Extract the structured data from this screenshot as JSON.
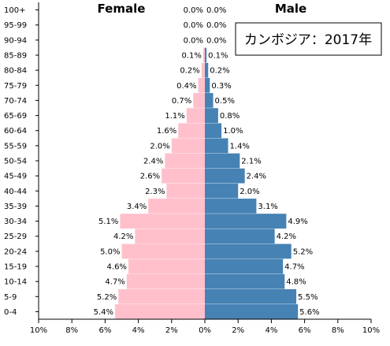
{
  "chart_data": {
    "type": "bar",
    "orientation": "horizontal-population-pyramid",
    "title": "カンボジア：2017年",
    "categories": [
      "100+",
      "95-99",
      "90-94",
      "85-89",
      "80-84",
      "75-79",
      "70-74",
      "65-69",
      "60-64",
      "55-59",
      "50-54",
      "45-49",
      "40-44",
      "35-39",
      "30-34",
      "25-29",
      "20-24",
      "15-19",
      "10-14",
      "5-9",
      "0-4"
    ],
    "series": [
      {
        "name": "Female",
        "color": "#ffc0cb",
        "values": [
          0.0,
          0.0,
          0.0,
          0.1,
          0.2,
          0.4,
          0.7,
          1.1,
          1.6,
          2.0,
          2.4,
          2.6,
          2.3,
          3.4,
          5.1,
          4.2,
          5.0,
          4.6,
          4.7,
          5.2,
          5.4
        ],
        "labels": [
          "0.0%",
          "0.0%",
          "0.0%",
          "0.1%",
          "0.2%",
          "0.4%",
          "0.7%",
          "1.1%",
          "1.6%",
          "2.0%",
          "2.4%",
          "2.6%",
          "2.3%",
          "3.4%",
          "5.1%",
          "4.2%",
          "5.0%",
          "4.6%",
          "4.7%",
          "5.2%",
          "5.4%"
        ]
      },
      {
        "name": "Male",
        "color": "#4682b4",
        "values": [
          0.0,
          0.0,
          0.0,
          0.1,
          0.2,
          0.3,
          0.5,
          0.8,
          1.0,
          1.4,
          2.1,
          2.4,
          2.0,
          3.1,
          4.9,
          4.2,
          5.2,
          4.7,
          4.8,
          5.5,
          5.6
        ],
        "labels": [
          "0.0%",
          "0.0%",
          "0.0%",
          "0.1%",
          "0.2%",
          "0.3%",
          "0.5%",
          "0.8%",
          "1.0%",
          "1.4%",
          "2.1%",
          "2.4%",
          "2.0%",
          "3.1%",
          "4.9%",
          "4.2%",
          "5.2%",
          "4.7%",
          "4.8%",
          "5.5%",
          "5.6%"
        ]
      }
    ],
    "xlim": [
      -10,
      10
    ],
    "x_ticks": [
      -10,
      -8,
      -6,
      -4,
      -2,
      0,
      2,
      4,
      6,
      8,
      10
    ],
    "x_tick_labels": [
      "10%",
      "8%",
      "6%",
      "4%",
      "2%",
      "0%",
      "2%",
      "4%",
      "6%",
      "8%",
      "10%"
    ],
    "grid": false
  }
}
